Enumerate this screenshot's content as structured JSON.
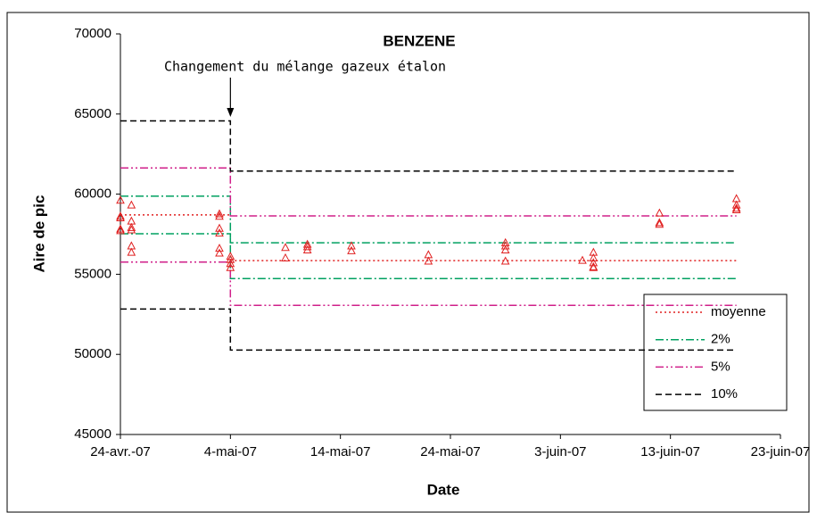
{
  "chart_data": {
    "type": "scatter",
    "title": "BENZENE",
    "annotation": "Changement du mélange gazeux étalon",
    "annotation_x": "2007-05-04",
    "x_label": "Date",
    "y_label": "Aire de pic",
    "xlim": [
      "2007-04-24",
      "2007-06-23"
    ],
    "xticks": [
      {
        "value": "2007-04-24",
        "label": "24-avr.-07"
      },
      {
        "value": "2007-05-04",
        "label": "4-mai-07"
      },
      {
        "value": "2007-05-14",
        "label": "14-mai-07"
      },
      {
        "value": "2007-05-24",
        "label": "24-mai-07"
      },
      {
        "value": "2007-06-03",
        "label": "3-juin-07"
      },
      {
        "value": "2007-06-13",
        "label": "13-juin-07"
      },
      {
        "value": "2007-06-23",
        "label": "23-juin-07"
      }
    ],
    "ylim": [
      45000,
      70000
    ],
    "yticks": [
      45000,
      50000,
      55000,
      60000,
      65000,
      70000
    ],
    "points": {
      "color": "#e02020",
      "x": [
        "2007-04-24",
        "2007-04-24",
        "2007-04-24",
        "2007-04-24",
        "2007-04-24",
        "2007-04-25",
        "2007-04-25",
        "2007-04-25",
        "2007-04-25",
        "2007-04-25",
        "2007-04-25",
        "2007-05-03",
        "2007-05-03",
        "2007-05-03",
        "2007-05-03",
        "2007-05-03",
        "2007-05-03",
        "2007-05-04",
        "2007-05-04",
        "2007-05-04",
        "2007-05-04",
        "2007-05-09",
        "2007-05-09",
        "2007-05-11",
        "2007-05-11",
        "2007-05-11",
        "2007-05-15",
        "2007-05-15",
        "2007-05-22",
        "2007-05-22",
        "2007-05-29",
        "2007-05-29",
        "2007-05-29",
        "2007-05-29",
        "2007-06-05",
        "2007-06-06",
        "2007-06-06",
        "2007-06-06",
        "2007-06-06",
        "2007-06-06",
        "2007-06-12",
        "2007-06-12",
        "2007-06-12",
        "2007-06-19",
        "2007-06-19",
        "2007-06-19",
        "2007-06-19"
      ],
      "values": [
        59600,
        58600,
        58500,
        57800,
        57700,
        59300,
        58300,
        57900,
        57750,
        56750,
        56350,
        58750,
        58600,
        57850,
        57550,
        56600,
        56300,
        56100,
        55900,
        55650,
        55400,
        56650,
        56000,
        56850,
        56700,
        56500,
        56750,
        56450,
        56200,
        55800,
        56950,
        56750,
        56500,
        55800,
        55850,
        56350,
        56000,
        55700,
        55450,
        55400,
        58800,
        58200,
        58100,
        59700,
        59300,
        59100,
        59000
      ]
    },
    "series": [
      {
        "name": "moyenne",
        "color": "#e02020",
        "style": "dotted",
        "x": [
          "2007-04-24",
          "2007-05-04",
          "2007-05-04",
          "2007-05-04",
          "2007-06-19"
        ],
        "values": [
          58700,
          58700,
          null,
          55850,
          55850
        ]
      },
      {
        "name": "2%",
        "color": "#00a060",
        "style": "dash-dot",
        "x": [
          "2007-04-24",
          "2007-05-04",
          "2007-05-04",
          "2007-06-19"
        ],
        "upper": [
          59874,
          59874,
          56967,
          56967
        ],
        "lower": [
          57526,
          57526,
          54733,
          54733
        ]
      },
      {
        "name": "5%",
        "color": "#d0208a",
        "style": "dash-dot-dot",
        "x": [
          "2007-04-24",
          "2007-05-04",
          "2007-05-04",
          "2007-06-19"
        ],
        "upper": [
          61635,
          61635,
          58643,
          58643
        ],
        "lower": [
          55765,
          55765,
          53058,
          53058
        ]
      },
      {
        "name": "10%",
        "color": "#000000",
        "style": "dashed",
        "x": [
          "2007-04-24",
          "2007-05-04",
          "2007-05-04",
          "2007-06-19"
        ],
        "upper": [
          64570,
          64570,
          61435,
          61435
        ],
        "lower": [
          52830,
          52830,
          50265,
          50265
        ]
      }
    ]
  }
}
